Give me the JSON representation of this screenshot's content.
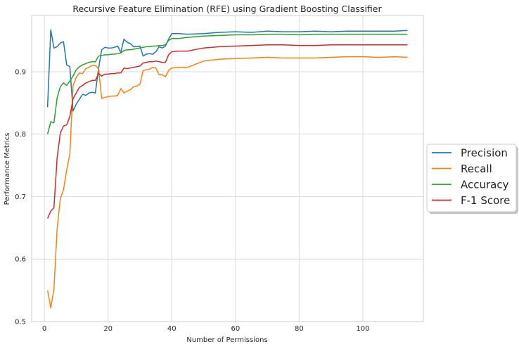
{
  "chart_data": {
    "type": "line",
    "title": "Recursive Feature Elimination (RFE) using Gradient Boosting Classifier",
    "xlabel": "Number of Permissions",
    "ylabel": "Performance Metrics",
    "xlim": [
      -4,
      119
    ],
    "ylim": [
      0.5,
      0.99
    ],
    "xticks": [
      0,
      20,
      40,
      60,
      80,
      100
    ],
    "yticks": [
      0.5,
      0.6,
      0.7,
      0.8,
      0.9
    ],
    "grid": true,
    "legend_position": "right-outside",
    "series": [
      {
        "name": "Precision",
        "color": "#1f77b4",
        "x": [
          1,
          2,
          3,
          4,
          5,
          6,
          7,
          8,
          9,
          10,
          11,
          12,
          13,
          14,
          15,
          16,
          17,
          18,
          19,
          20,
          21,
          22,
          23,
          24,
          25,
          26,
          27,
          28,
          29,
          30,
          31,
          32,
          33,
          34,
          35,
          36,
          37,
          38,
          39,
          40,
          42,
          45,
          50,
          55,
          60,
          65,
          70,
          75,
          80,
          85,
          90,
          95,
          100,
          105,
          110,
          114
        ],
        "values": [
          0.843,
          0.967,
          0.938,
          0.94,
          0.946,
          0.948,
          0.911,
          0.908,
          0.837,
          0.848,
          0.856,
          0.864,
          0.862,
          0.866,
          0.867,
          0.866,
          0.905,
          0.935,
          0.939,
          0.938,
          0.938,
          0.939,
          0.941,
          0.931,
          0.952,
          0.947,
          0.945,
          0.94,
          0.94,
          0.941,
          0.925,
          0.928,
          0.929,
          0.928,
          0.932,
          0.94,
          0.938,
          0.941,
          0.952,
          0.961,
          0.961,
          0.96,
          0.961,
          0.963,
          0.964,
          0.963,
          0.965,
          0.964,
          0.964,
          0.965,
          0.964,
          0.965,
          0.965,
          0.965,
          0.965,
          0.966
        ]
      },
      {
        "name": "Recall",
        "color": "#ff7f0e",
        "x": [
          1,
          2,
          3,
          4,
          5,
          6,
          7,
          8,
          9,
          10,
          11,
          12,
          13,
          14,
          15,
          16,
          17,
          18,
          19,
          20,
          21,
          22,
          23,
          24,
          25,
          26,
          27,
          28,
          29,
          30,
          31,
          32,
          33,
          34,
          35,
          36,
          37,
          38,
          39,
          40,
          42,
          45,
          50,
          55,
          60,
          65,
          70,
          75,
          80,
          85,
          90,
          95,
          100,
          105,
          110,
          114
        ],
        "values": [
          0.55,
          0.522,
          0.552,
          0.648,
          0.697,
          0.711,
          0.743,
          0.768,
          0.878,
          0.891,
          0.898,
          0.897,
          0.905,
          0.907,
          0.91,
          0.91,
          0.905,
          0.857,
          0.859,
          0.86,
          0.861,
          0.861,
          0.862,
          0.873,
          0.866,
          0.869,
          0.871,
          0.876,
          0.877,
          0.88,
          0.902,
          0.903,
          0.904,
          0.907,
          0.906,
          0.895,
          0.895,
          0.892,
          0.902,
          0.906,
          0.907,
          0.907,
          0.917,
          0.92,
          0.921,
          0.922,
          0.923,
          0.922,
          0.922,
          0.922,
          0.923,
          0.924,
          0.924,
          0.923,
          0.924,
          0.923
        ]
      },
      {
        "name": "Accuracy",
        "color": "#2ca02c",
        "x": [
          1,
          2,
          3,
          4,
          5,
          6,
          7,
          8,
          9,
          10,
          11,
          12,
          13,
          14,
          15,
          16,
          17,
          18,
          19,
          20,
          21,
          22,
          23,
          24,
          25,
          26,
          27,
          28,
          29,
          30,
          31,
          32,
          33,
          34,
          35,
          36,
          37,
          38,
          39,
          40,
          42,
          45,
          50,
          55,
          60,
          65,
          70,
          75,
          80,
          85,
          90,
          95,
          100,
          105,
          110,
          114
        ],
        "values": [
          0.8,
          0.82,
          0.818,
          0.858,
          0.876,
          0.882,
          0.878,
          0.885,
          0.893,
          0.903,
          0.908,
          0.911,
          0.913,
          0.915,
          0.916,
          0.916,
          0.925,
          0.926,
          0.927,
          0.927,
          0.928,
          0.928,
          0.929,
          0.93,
          0.934,
          0.935,
          0.935,
          0.936,
          0.937,
          0.938,
          0.939,
          0.94,
          0.94,
          0.941,
          0.941,
          0.942,
          0.942,
          0.943,
          0.95,
          0.953,
          0.953,
          0.955,
          0.957,
          0.958,
          0.959,
          0.959,
          0.96,
          0.96,
          0.959,
          0.96,
          0.96,
          0.96,
          0.96,
          0.96,
          0.96,
          0.96
        ]
      },
      {
        "name": "F-1 Score",
        "color": "#d62728",
        "x": [
          1,
          2,
          3,
          4,
          5,
          6,
          7,
          8,
          9,
          10,
          11,
          12,
          13,
          14,
          15,
          16,
          17,
          18,
          19,
          20,
          21,
          22,
          23,
          24,
          25,
          26,
          27,
          28,
          29,
          30,
          31,
          32,
          33,
          34,
          35,
          36,
          37,
          38,
          39,
          40,
          42,
          45,
          50,
          55,
          60,
          65,
          70,
          75,
          80,
          85,
          90,
          95,
          100,
          105,
          110,
          114
        ],
        "values": [
          0.665,
          0.677,
          0.682,
          0.762,
          0.802,
          0.813,
          0.815,
          0.828,
          0.857,
          0.866,
          0.875,
          0.878,
          0.882,
          0.884,
          0.886,
          0.886,
          0.897,
          0.893,
          0.896,
          0.896,
          0.897,
          0.897,
          0.898,
          0.898,
          0.906,
          0.905,
          0.906,
          0.907,
          0.908,
          0.909,
          0.914,
          0.915,
          0.916,
          0.916,
          0.917,
          0.916,
          0.915,
          0.915,
          0.927,
          0.932,
          0.933,
          0.933,
          0.938,
          0.94,
          0.941,
          0.942,
          0.943,
          0.943,
          0.942,
          0.942,
          0.943,
          0.943,
          0.943,
          0.943,
          0.943,
          0.943
        ]
      }
    ]
  }
}
